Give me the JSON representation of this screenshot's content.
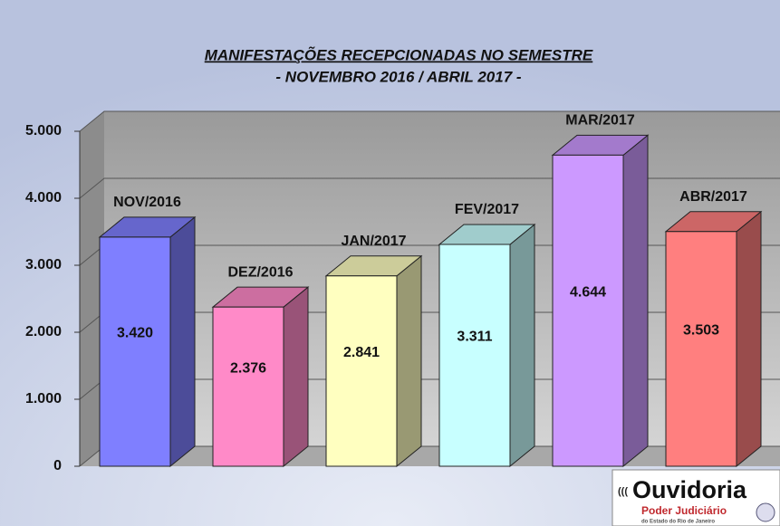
{
  "chart_data": {
    "type": "bar3d",
    "title": "MANIFESTAÇÕES RECEPCIONADAS  NO SEMESTRE",
    "subtitle": "- NOVEMBRO 2016 / ABRIL 2017 -",
    "categories": [
      "NOV/2016",
      "DEZ/2016",
      "JAN/2017",
      "FEV/2017",
      "MAR/2017",
      "ABR/2017"
    ],
    "values": [
      3420,
      2376,
      2841,
      3311,
      4644,
      3503
    ],
    "value_labels": [
      "3.420",
      "2.376",
      "2.841",
      "3.311",
      "4.644",
      "3.503"
    ],
    "colors": [
      "#7f7fff",
      "#ff8ac8",
      "#ffffc0",
      "#c8ffff",
      "#cc99ff",
      "#ff7f7f"
    ],
    "ylim": [
      0,
      5000
    ],
    "yticks": [
      0,
      {
        "value": 1000,
        "label": "1.000"
      },
      {
        "value": 2000,
        "label": "2.000"
      },
      {
        "value": 3000,
        "label": "3.000"
      },
      {
        "value": 4000,
        "label": "4.000"
      },
      {
        "value": 5000,
        "label": "5.000"
      }
    ],
    "grid": true
  },
  "logo": {
    "name": "Ouvidoria",
    "line1": "Poder Judiciário",
    "line2": "do Estado do Rio de Janeiro"
  }
}
